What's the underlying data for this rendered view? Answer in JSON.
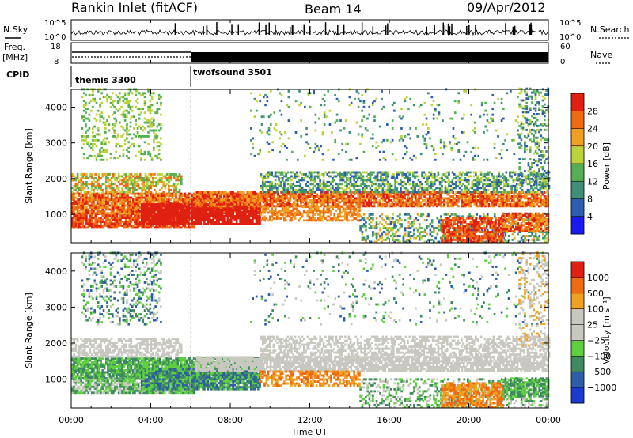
{
  "header": {
    "title": "Rankin Inlet (fitACF)",
    "beam": "Beam 14",
    "date": "09/Apr/2012"
  },
  "top_panels": {
    "nsky_label": "N.Sky",
    "nsearch_label": "N.Search",
    "nsky_ticks": [
      "10^5",
      "10^0"
    ],
    "nsearch_ticks": [
      "10^5",
      "10^0"
    ],
    "freq_label_1": "Freq.",
    "freq_label_2": "[MHz]",
    "freq_ticks": [
      "18",
      "8"
    ],
    "nave_label": "Nave",
    "nave_ticks": [
      "60",
      "0"
    ],
    "cpid_label": "CPID",
    "cpid_modes": [
      {
        "name": "themis 3300",
        "start_hour": 0
      },
      {
        "name": "twofsound 3501",
        "start_hour": 6
      }
    ]
  },
  "chart_data": [
    {
      "type": "heatmap",
      "title": "",
      "xlabel": "Time UT",
      "ylabel": "Slant Range [km]",
      "xlim": [
        0,
        24
      ],
      "ylim": [
        200,
        4500
      ],
      "xticks": [
        "00:00",
        "04:00",
        "08:00",
        "12:00",
        "16:00",
        "20:00",
        "00:00"
      ],
      "yticks": [
        1000,
        2000,
        3000,
        4000
      ],
      "colorbar": {
        "label": "Power [dB]",
        "ticks": [
          "4",
          "8",
          "12",
          "16",
          "20",
          "24",
          "28"
        ],
        "colors": [
          "#1a1af0",
          "#2c5db0",
          "#3f8f78",
          "#55b055",
          "#bcd23a",
          "#f0a020",
          "#ef6a10",
          "#e02010"
        ]
      }
    },
    {
      "type": "heatmap",
      "title": "",
      "xlabel": "Time UT",
      "ylabel": "Slant Range [km]",
      "xlim": [
        0,
        24
      ],
      "ylim": [
        200,
        4500
      ],
      "xticks": [
        "00:00",
        "04:00",
        "08:00",
        "12:00",
        "16:00",
        "20:00",
        "00:00"
      ],
      "yticks": [
        1000,
        2000,
        3000,
        4000
      ],
      "colorbar": {
        "label": "Velocity [m s⁻¹]",
        "ticks": [
          "1000",
          "500",
          "100",
          "25",
          "−25",
          "−100",
          "−500",
          "−1000"
        ],
        "colors": [
          "#1a3ad0",
          "#2c5da8",
          "#3f8a60",
          "#5fcf40",
          "#c8c8c0",
          "#c8c8c0",
          "#f0a020",
          "#ef6a10",
          "#e02010"
        ]
      }
    }
  ]
}
